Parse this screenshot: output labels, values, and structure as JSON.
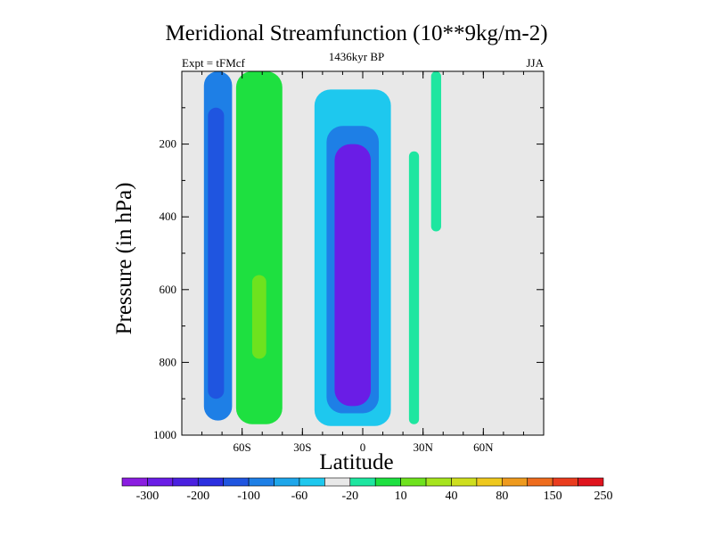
{
  "chart_data": {
    "type": "heatmap",
    "title": "Meridional Streamfunction (10**9kg/m-2)",
    "left_string": "Expt = tFMcf",
    "center_string": "1436kyr BP",
    "right_string": "JJA",
    "xlabel": "Latitude",
    "ylabel": "Pressure (in hPa)",
    "xlim": [
      -90,
      90
    ],
    "ylim": [
      1000,
      0
    ],
    "x_ticks": [
      {
        "value": -60,
        "label": "60S"
      },
      {
        "value": -30,
        "label": "30S"
      },
      {
        "value": 0,
        "label": "0"
      },
      {
        "value": 30,
        "label": "30N"
      },
      {
        "value": 60,
        "label": "60N"
      }
    ],
    "y_ticks": [
      {
        "value": 200,
        "label": "200"
      },
      {
        "value": 400,
        "label": "400"
      },
      {
        "value": 600,
        "label": "600"
      },
      {
        "value": 800,
        "label": "800"
      },
      {
        "value": 1000,
        "label": "1000"
      }
    ],
    "colorbar": {
      "labels": [
        "-300",
        "-200",
        "-100",
        "-60",
        "-20",
        "10",
        "40",
        "80",
        "150",
        "250"
      ],
      "colors": [
        "#8a1de0",
        "#6a1de6",
        "#4a20e0",
        "#2b2fe0",
        "#1f55e0",
        "#1e7fe6",
        "#1ea6ea",
        "#1ec8ee",
        "#e8e8e8",
        "#1ee6a0",
        "#1ee040",
        "#6ee21e",
        "#a6e41e",
        "#cede1e",
        "#eec81e",
        "#ee9a1e",
        "#ee6c1e",
        "#ea3c1e",
        "#e0141e"
      ]
    },
    "features": [
      {
        "name": "southern-ocean-negative-cell",
        "level": "-60",
        "lat": [
          -79,
          -65
        ],
        "p": [
          0,
          960
        ],
        "color_index": 5
      },
      {
        "name": "southern-ocean-core",
        "level": "-100",
        "lat": [
          -77,
          -69
        ],
        "p": [
          100,
          900
        ],
        "color_index": 4
      },
      {
        "name": "southern-positive-cell",
        "level": "40",
        "lat": [
          -63,
          -40
        ],
        "p": [
          0,
          970
        ],
        "color_index": 10
      },
      {
        "name": "southern-positive-core",
        "level": "80",
        "lat": [
          -55,
          -48
        ],
        "p": [
          560,
          790
        ],
        "color_index": 11
      },
      {
        "name": "tropical-negative-cell-outer",
        "level": "-20",
        "lat": [
          -24,
          14
        ],
        "p": [
          50,
          975
        ],
        "color_index": 7
      },
      {
        "name": "tropical-negative-cell-mid",
        "level": "-60",
        "lat": [
          -18,
          8
        ],
        "p": [
          150,
          940
        ],
        "color_index": 5
      },
      {
        "name": "tropical-negative-cell-core",
        "level": "-200",
        "lat": [
          -14,
          4
        ],
        "p": [
          200,
          920
        ],
        "color_index": 1
      },
      {
        "name": "northern-positive-strip",
        "level": "10",
        "lat": [
          23,
          28
        ],
        "p": [
          220,
          970
        ],
        "color_index": 9
      },
      {
        "name": "northern-upper-strip",
        "level": "10",
        "lat": [
          34,
          39
        ],
        "p": [
          0,
          440
        ],
        "color_index": 9
      }
    ]
  }
}
